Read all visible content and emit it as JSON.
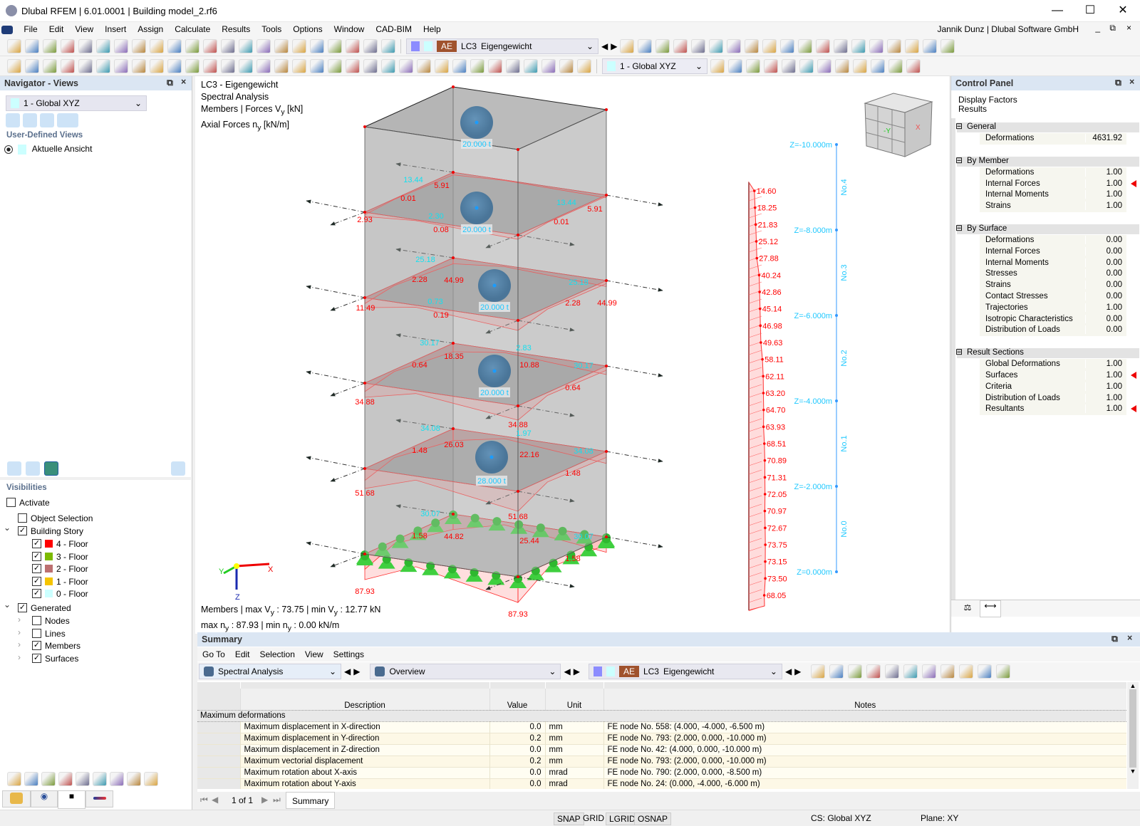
{
  "window": {
    "title": "Dlubal RFEM | 6.01.0001 | Building model_2.rf6",
    "user": "Jannik Dunz | Dlubal Software GmbH"
  },
  "menu": [
    "File",
    "Edit",
    "View",
    "Insert",
    "Assign",
    "Calculate",
    "Results",
    "Tools",
    "Options",
    "Window",
    "CAD-BIM",
    "Help"
  ],
  "toolbar": {
    "row1_icons": [
      "new-model-icon",
      "open-icon",
      "dlubal-center-icon",
      "webservice-icon",
      "model-archive-icon",
      "save-icon",
      "print-icon",
      "report-icon",
      "undo-icon",
      "redo-icon",
      "table-icon",
      "spreadsheet-icon",
      "color-table-icon",
      "console-icon",
      "script-icon",
      "list-icon",
      "surface-select-icon",
      "node-select-icon",
      "target-icon",
      "solid-select-icon",
      "dimension-icon",
      "loads-icon"
    ],
    "load_case": {
      "tag": "AE",
      "code": "LC3",
      "name": "Eigengewicht"
    },
    "row1_right_icons": [
      "filter-icon",
      "result-values-icon",
      "xxx-values-icon",
      "support-reactions-icon",
      "xxx-reactions-icon",
      "grid-icon",
      "deformation-icon",
      "numbering-icon",
      "section-icon",
      "animation-icon",
      "clip-icon",
      "box-icon",
      "box-edit-icon",
      "axis-x-icon",
      "axis-y-icon",
      "axis-z-icon",
      "axis-neg-x-icon",
      "microscope-icon",
      "render-icon"
    ],
    "row2_icons": [
      "new-node-icon",
      "new-line-icon",
      "new-member-icon",
      "polyline-icon",
      "support-icon",
      "member-support-icon",
      "hinge-icon",
      "dimension-icon",
      "dimension-xx-icon",
      "new-surface-icon",
      "new-solid-icon",
      "opening-icon",
      "surface-support-icon",
      "section-view-icon",
      "spring-icon",
      "load-node-icon",
      "load-member-icon",
      "load-surface-icon",
      "load-free-icon",
      "curve-icon",
      "filter-icon",
      "frame-icon",
      "diagram-icon",
      "contour-icon",
      "cube-icon",
      "arrows-icon",
      "pencil-icon",
      "line-a-icon",
      "line-b-icon",
      "line-c-icon",
      "line-d-icon",
      "line-e-icon",
      "color-scale-icon"
    ],
    "coordinate_system": "1 - Global XYZ",
    "row2_right_icons": [
      "cs-icon",
      "mesh-icon",
      "node-snap-icon",
      "view-iso-icon",
      "view-front-icon",
      "view-side-icon",
      "link-icon",
      "rotate-icon",
      "mirror-icon",
      "delete-icon",
      "settings-icon",
      "chart-icon"
    ]
  },
  "navigator": {
    "title": "Navigator - Views",
    "view_select": "1 - Global XYZ",
    "section_user_views": "User-Defined Views",
    "user_views": [
      "Aktuelle Ansicht"
    ],
    "visibilities_title": "Visibilities",
    "activate": {
      "label": "Activate",
      "checked": false
    },
    "object_selection": {
      "label": "Object Selection",
      "checked": false
    },
    "building_story": {
      "label": "Building Story",
      "checked": true,
      "floors": [
        {
          "label": "4 - Floor",
          "color": "#ff0000"
        },
        {
          "label": "3 - Floor",
          "color": "#7cba00"
        },
        {
          "label": "2 - Floor",
          "color": "#bc7070"
        },
        {
          "label": "1 - Floor",
          "color": "#f5c400"
        },
        {
          "label": "0 - Floor",
          "color": "#ccffff"
        }
      ]
    },
    "generated": {
      "label": "Generated",
      "checked": true,
      "items": [
        {
          "label": "Nodes",
          "checked": false
        },
        {
          "label": "Lines",
          "checked": false
        },
        {
          "label": "Members",
          "checked": true
        },
        {
          "label": "Surfaces",
          "checked": true
        }
      ]
    }
  },
  "viewport": {
    "info": [
      "LC3 - Eigengewicht",
      "Spectral Analysis"
    ],
    "info_members": {
      "pre": "Members | Forces V",
      "sub": "y",
      "post": " [kN]"
    },
    "info_axial": {
      "pre": "Axial Forces n",
      "sub": "y",
      "post": " [kN/m]"
    },
    "summary_line1": {
      "a": "Members | max V",
      "sub1": "y",
      "b": " : 73.75 | min V",
      "sub2": "y",
      "c": " : 12.77 kN"
    },
    "summary_line2": {
      "a": "max n",
      "sub1": "y",
      "b": " : 87.93 | min n",
      "sub2": "y",
      "c": " : 0.00 kN/m"
    },
    "masses": [
      "20.000 t",
      "20.000 t",
      "20.000 t",
      "20.000 t",
      "28.000 t"
    ],
    "red_labels": [
      "5.91",
      "0.01",
      "2.93",
      "0.08",
      "5.91",
      "0.01",
      "2.28",
      "44.99",
      "11.49",
      "0.19",
      "2.28",
      "44.99",
      "18.35",
      "0.64",
      "10.88",
      "0.64",
      "34.88",
      "34.88",
      "26.03",
      "1.48",
      "22.16",
      "1.48",
      "51.68",
      "51.68",
      "1.58",
      "44.82",
      "25.44",
      "1.58",
      "87.93",
      "87.93"
    ],
    "cyan_labels": [
      "13.44",
      "2.30",
      "13.44",
      "25.18",
      "0.73",
      "25.18",
      "30.17",
      "2.83",
      "30.17",
      "34.08",
      "1.97",
      "34.08",
      "30.07",
      "30.07"
    ],
    "axes": {
      "x": "X",
      "y": "Y",
      "z": "Z"
    },
    "column_levels": [
      "Z=-10.000m",
      "Z=-8.000m",
      "Z=-6.000m",
      "Z=-4.000m",
      "Z=-2.000m",
      "Z=0.000m"
    ],
    "column_stories": [
      "No.4",
      "No.3",
      "No.2",
      "No.1",
      "No.0"
    ],
    "column_values": [
      14.6,
      18.25,
      21.83,
      25.12,
      27.88,
      40.24,
      42.86,
      45.14,
      46.98,
      49.63,
      58.11,
      62.11,
      63.2,
      64.7,
      63.93,
      68.51,
      70.89,
      71.31,
      72.05,
      70.97,
      72.67,
      73.75,
      73.15,
      73.5,
      68.05
    ],
    "colors": {
      "results": "#ff0000",
      "labels": "#00e5ff",
      "supports": "#33cc33",
      "masses": "#4a7fa8"
    }
  },
  "control_panel": {
    "title": "Control Panel",
    "heading": [
      "Display Factors",
      "Results"
    ],
    "groups": [
      {
        "label": "General",
        "items": [
          {
            "label": "Deformations",
            "value": "4631.92",
            "marked": false
          }
        ]
      },
      {
        "label": "By Member",
        "items": [
          {
            "label": "Deformations",
            "value": "1.00",
            "marked": false
          },
          {
            "label": "Internal Forces",
            "value": "1.00",
            "marked": true
          },
          {
            "label": "Internal Moments",
            "value": "1.00",
            "marked": false
          },
          {
            "label": "Strains",
            "value": "1.00",
            "marked": false
          }
        ]
      },
      {
        "label": "By Surface",
        "items": [
          {
            "label": "Deformations",
            "value": "0.00",
            "marked": false
          },
          {
            "label": "Internal Forces",
            "value": "0.00",
            "marked": false
          },
          {
            "label": "Internal Moments",
            "value": "0.00",
            "marked": false
          },
          {
            "label": "Stresses",
            "value": "0.00",
            "marked": false
          },
          {
            "label": "Strains",
            "value": "0.00",
            "marked": false
          },
          {
            "label": "Contact Stresses",
            "value": "0.00",
            "marked": false
          },
          {
            "label": "Trajectories",
            "value": "1.00",
            "marked": false
          },
          {
            "label": "Isotropic Characteristics",
            "value": "0.00",
            "marked": false
          },
          {
            "label": "Distribution of Loads",
            "value": "0.00",
            "marked": false
          }
        ]
      },
      {
        "label": "Result Sections",
        "items": [
          {
            "label": "Global Deformations",
            "value": "1.00",
            "marked": false
          },
          {
            "label": "Surfaces",
            "value": "1.00",
            "marked": true
          },
          {
            "label": "Criteria",
            "value": "1.00",
            "marked": false
          },
          {
            "label": "Distribution of Loads",
            "value": "1.00",
            "marked": false
          },
          {
            "label": "Resultants",
            "value": "1.00",
            "marked": true
          }
        ]
      }
    ]
  },
  "summary": {
    "title": "Summary",
    "menu": [
      "Go To",
      "Edit",
      "Selection",
      "View",
      "Settings"
    ],
    "analysis_select": "Spectral Analysis",
    "view_select": "Overview",
    "load_case": {
      "tag": "AE",
      "code": "LC3",
      "name": "Eigengewicht"
    },
    "columns": [
      "Description",
      "Value",
      "Unit",
      "Notes"
    ],
    "group": "Maximum deformations",
    "rows": [
      {
        "description": "Maximum displacement in X-direction",
        "value": "0.0",
        "unit": "mm",
        "notes": "FE node No. 558: (4.000, -4.000, -6.500 m)"
      },
      {
        "description": "Maximum displacement in Y-direction",
        "value": "0.2",
        "unit": "mm",
        "notes": "FE node No. 793: (2.000, 0.000, -10.000 m)"
      },
      {
        "description": "Maximum displacement in Z-direction",
        "value": "0.0",
        "unit": "mm",
        "notes": "FE node No. 42: (4.000, 0.000, -10.000 m)"
      },
      {
        "description": "Maximum vectorial displacement",
        "value": "0.2",
        "unit": "mm",
        "notes": "FE node No. 793: (2.000, 0.000, -10.000 m)"
      },
      {
        "description": "Maximum rotation about X-axis",
        "value": "0.0",
        "unit": "mrad",
        "notes": "FE node No. 790: (2.000, 0.000, -8.500 m)"
      },
      {
        "description": "Maximum rotation about Y-axis",
        "value": "0.0",
        "unit": "mrad",
        "notes": "FE node No. 24: (0.000, -4.000, -6.000 m)"
      }
    ],
    "pager": "1 of 1",
    "tab": "Summary"
  },
  "statusbar": {
    "toggles": [
      "SNAP",
      "GRID",
      "LGRID",
      "OSNAP"
    ],
    "cs": "CS: Global XYZ",
    "plane": "Plane: XY"
  }
}
